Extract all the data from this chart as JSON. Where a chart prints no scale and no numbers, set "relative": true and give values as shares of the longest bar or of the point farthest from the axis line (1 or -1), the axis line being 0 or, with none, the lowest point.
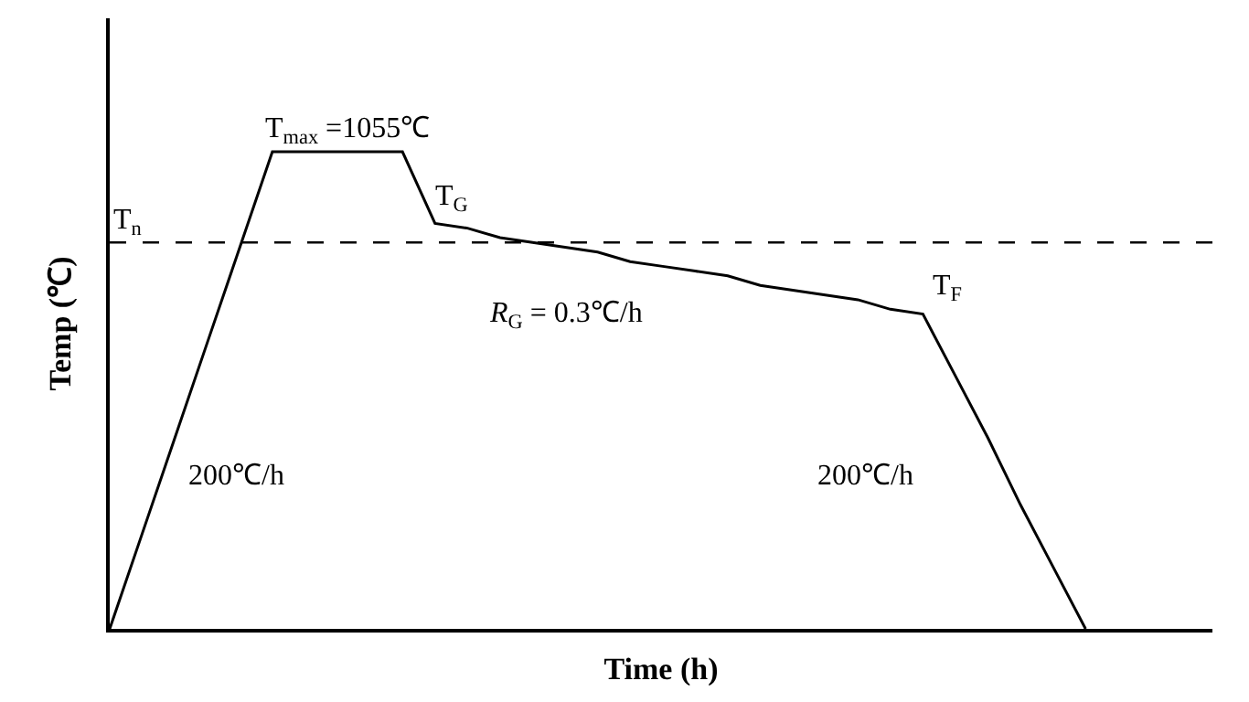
{
  "chart_data": {
    "type": "line",
    "relative": true,
    "xlabel": "Time (h)",
    "ylabel": "Temp (℃)",
    "categories": [
      null,
      null,
      null,
      null,
      null,
      null,
      null,
      null,
      null,
      null,
      null,
      null,
      null,
      null,
      null,
      null,
      null,
      null,
      null,
      null,
      null,
      null,
      null,
      null,
      null,
      null,
      null,
      null,
      null,
      null,
      null
    ],
    "series": [
      {
        "color": "#000000",
        "values": [
          0,
          0.2,
          0.4,
          0.6,
          0.8,
          1,
          1,
          1,
          1,
          1,
          0.85,
          0.84,
          0.82,
          0.81,
          0.8,
          0.79,
          0.77,
          0.76,
          0.75,
          0.74,
          0.72,
          0.71,
          0.7,
          0.69,
          0.67,
          0.66,
          0.53,
          0.4,
          0.26,
          0.13,
          0
        ]
      }
    ],
    "ref_lines": [
      {
        "axis": "y",
        "value": 0.81,
        "label": "T$_{n}$",
        "color": "#000000",
        "line_style": "dashed"
      }
    ],
    "annotations": [
      "T$_{max}$ =1055℃",
      "T$_{G}$",
      "T$_{F}$",
      "R$_{G}$ = 0.3℃/h",
      "200℃/h",
      "200℃/h"
    ],
    "marker": "none",
    "line_style": "solid",
    "tick_labels": false
  }
}
